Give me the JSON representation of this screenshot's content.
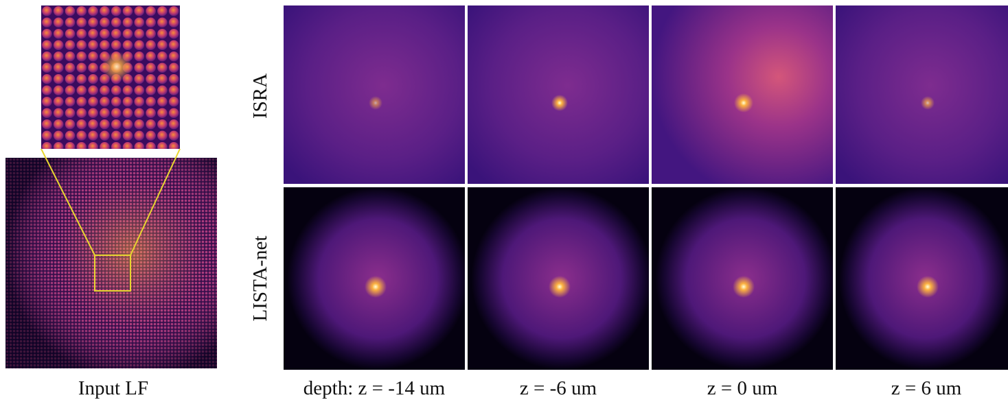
{
  "input_panel": {
    "caption": "Input LF"
  },
  "rows": [
    {
      "label": "ISRA"
    },
    {
      "label": "LISTA-net"
    }
  ],
  "columns": [
    {
      "label": "depth: z = -14 um"
    },
    {
      "label": "z = -6 um"
    },
    {
      "label": "z = 0 um"
    },
    {
      "label": "z = 6 um"
    }
  ]
}
